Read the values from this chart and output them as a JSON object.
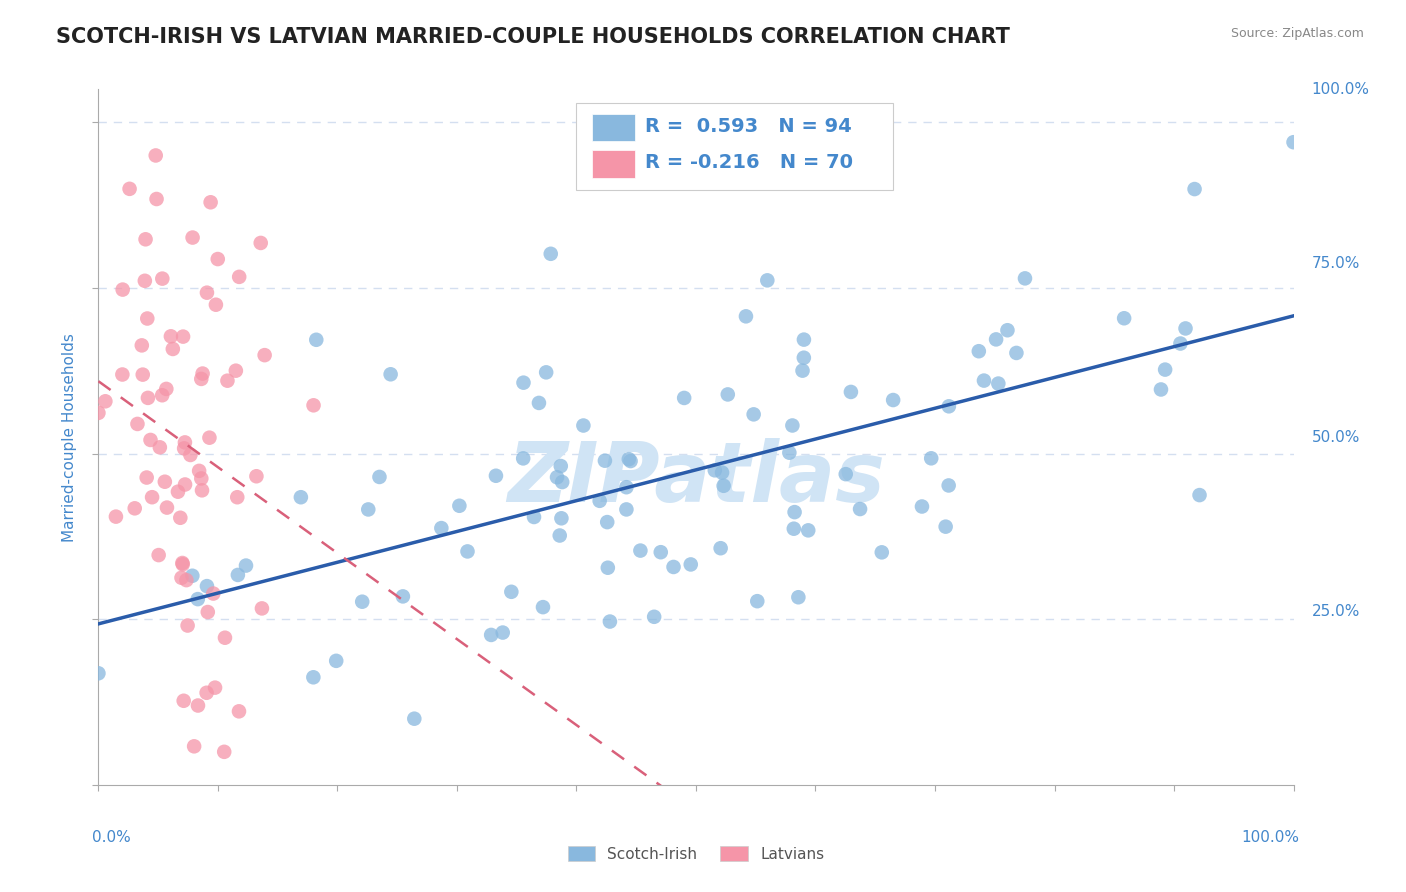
{
  "title": "SCOTCH-IRISH VS LATVIAN MARRIED-COUPLE HOUSEHOLDS CORRELATION CHART",
  "source_text": "Source: ZipAtlas.com",
  "ylabel_label": "Married-couple Households",
  "ylabel_ticks": [
    "25.0%",
    "50.0%",
    "75.0%",
    "100.0%"
  ],
  "scotch_irish_R": 0.593,
  "scotch_irish_N": 94,
  "latvian_R": -0.216,
  "latvian_N": 70,
  "scotch_irish_color": "#89b8de",
  "latvian_color": "#f595a8",
  "scotch_irish_line_color": "#2a5caa",
  "latvian_line_color": "#d9607a",
  "watermark_text": "ZIPatlas",
  "watermark_color": "#d0e4f5",
  "background_color": "#ffffff",
  "grid_color": "#d4dff0",
  "title_color": "#222222",
  "blue_label_color": "#4488cc",
  "axis_label_color": "#4488cc",
  "title_fontsize": 15,
  "axis_fontsize": 11,
  "legend_fontsize": 14,
  "legend_R1": "R =  0.593",
  "legend_N1": "N = 94",
  "legend_R2": "R = -0.216",
  "legend_N2": "N = 70"
}
